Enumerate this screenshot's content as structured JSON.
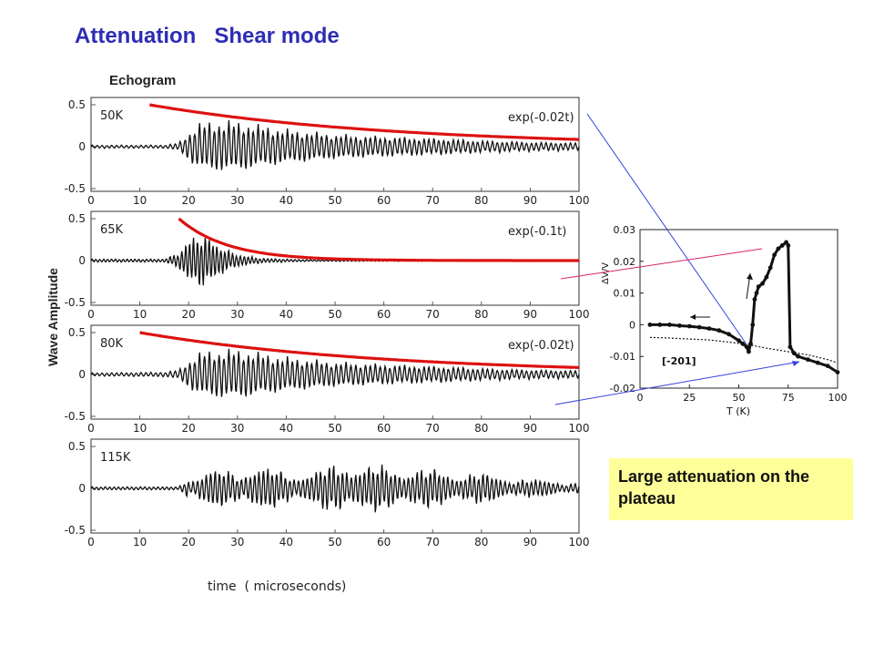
{
  "slide": {
    "title": "Attenuation   Shear mode",
    "subtitle": "Echogram",
    "ylabel": "Wave Amplitude",
    "xlabel": "time  ( microseconds)",
    "note": "Large attenuation  on the plateau"
  },
  "colors": {
    "title": "#2d2db4",
    "fit_curve": "#dd1111",
    "waveform": "#111111",
    "note_bg": "#ffff99",
    "pointer_blue": "#3344dd",
    "pointer_red": "#dd2266"
  },
  "chart_data": [
    {
      "type": "line",
      "panel": "echogram",
      "label": "50K",
      "fit_label": "exp(-0.02t)",
      "xlim": [
        0,
        100
      ],
      "ylim": [
        -0.5,
        0.5
      ],
      "yticks": [
        "0.5",
        "0",
        "-0.5"
      ],
      "xticks": [
        "0",
        "10",
        "20",
        "30",
        "40",
        "50",
        "60",
        "70",
        "80",
        "90",
        "100"
      ],
      "fit": {
        "amplitude": 0.5,
        "rate": 0.02,
        "x_start": 12,
        "x_end": 100
      },
      "envelope": [
        [
          0,
          0.02
        ],
        [
          15,
          0.02
        ],
        [
          18,
          0.05
        ],
        [
          22,
          0.3
        ],
        [
          28,
          0.33
        ],
        [
          32,
          0.3
        ],
        [
          40,
          0.22
        ],
        [
          50,
          0.16
        ],
        [
          60,
          0.13
        ],
        [
          70,
          0.11
        ],
        [
          80,
          0.08
        ],
        [
          90,
          0.06
        ],
        [
          100,
          0.05
        ]
      ],
      "carrier_period": 1.0
    },
    {
      "type": "line",
      "panel": "echogram",
      "label": "65K",
      "fit_label": "exp(-0.1t)",
      "xlim": [
        0,
        100
      ],
      "ylim": [
        -0.5,
        0.5
      ],
      "yticks": [
        "0.5",
        "0",
        "-0.5"
      ],
      "xticks": [
        "0",
        "10",
        "20",
        "30",
        "40",
        "50",
        "60",
        "70",
        "80",
        "90",
        "100"
      ],
      "fit": {
        "amplitude": 0.5,
        "rate": 0.1,
        "x_start": 18,
        "x_end": 100
      },
      "envelope": [
        [
          0,
          0.02
        ],
        [
          15,
          0.02
        ],
        [
          18,
          0.1
        ],
        [
          20,
          0.28
        ],
        [
          23,
          0.35
        ],
        [
          26,
          0.2
        ],
        [
          30,
          0.08
        ],
        [
          35,
          0.03
        ],
        [
          45,
          0.01
        ],
        [
          100,
          0.01
        ]
      ],
      "carrier_period": 0.8
    },
    {
      "type": "line",
      "panel": "echogram",
      "label": "80K",
      "fit_label": "exp(-0.02t)",
      "xlim": [
        0,
        100
      ],
      "ylim": [
        -0.5,
        0.5
      ],
      "yticks": [
        "0.5",
        "0",
        "-0.5"
      ],
      "xticks": [
        "0",
        "10",
        "20",
        "30",
        "40",
        "50",
        "60",
        "70",
        "80",
        "90",
        "100"
      ],
      "fit": {
        "amplitude": 0.5,
        "rate": 0.02,
        "x_start": 10,
        "x_end": 100
      },
      "envelope": [
        [
          0,
          0.02
        ],
        [
          15,
          0.03
        ],
        [
          18,
          0.06
        ],
        [
          22,
          0.28
        ],
        [
          28,
          0.32
        ],
        [
          32,
          0.3
        ],
        [
          40,
          0.22
        ],
        [
          50,
          0.16
        ],
        [
          60,
          0.13
        ],
        [
          70,
          0.11
        ],
        [
          80,
          0.08
        ],
        [
          90,
          0.06
        ],
        [
          100,
          0.05
        ]
      ],
      "carrier_period": 1.0
    },
    {
      "type": "line",
      "panel": "echogram",
      "label": "115K",
      "xlim": [
        0,
        100
      ],
      "ylim": [
        -0.5,
        0.5
      ],
      "yticks": [
        "0.5",
        "0",
        "-0.5"
      ],
      "xticks": [
        "0",
        "10",
        "20",
        "30",
        "40",
        "50",
        "60",
        "70",
        "80",
        "90",
        "100"
      ],
      "envelope": [
        [
          0,
          0.02
        ],
        [
          18,
          0.02
        ],
        [
          20,
          0.12
        ],
        [
          25,
          0.25
        ],
        [
          35,
          0.28
        ],
        [
          45,
          0.2
        ],
        [
          52,
          0.4
        ],
        [
          55,
          0.3
        ],
        [
          62,
          0.3
        ],
        [
          70,
          0.25
        ],
        [
          80,
          0.2
        ],
        [
          90,
          0.12
        ],
        [
          100,
          0.08
        ]
      ],
      "carrier_period": 0.9,
      "beat_period": 11
    },
    {
      "type": "scatter",
      "panel": "inset",
      "annotation": "[-201]",
      "xlabel": "T  (K)",
      "ylabel": "ΔV/V",
      "xlim": [
        0,
        100
      ],
      "ylim": [
        -0.02,
        0.03
      ],
      "xticks": [
        "0",
        "25",
        "50",
        "75",
        "100"
      ],
      "yticks": [
        "0.03",
        "0.02",
        "0.01",
        "0",
        "-0.01",
        "-0.02"
      ],
      "series": [
        {
          "role": "heating",
          "x": [
            5,
            10,
            15,
            20,
            25,
            30,
            35,
            40,
            45,
            50,
            52,
            54,
            55,
            56,
            57,
            58,
            59,
            60,
            62,
            64,
            66,
            68,
            70,
            72,
            74,
            75,
            76,
            78,
            80,
            85,
            90,
            95,
            100
          ],
          "y": [
            0,
            0,
            0,
            -0.0003,
            -0.0005,
            -0.0008,
            -0.0012,
            -0.0018,
            -0.003,
            -0.005,
            -0.006,
            -0.007,
            -0.0085,
            -0.006,
            0,
            0.008,
            0.01,
            0.012,
            0.013,
            0.015,
            0.018,
            0.022,
            0.024,
            0.025,
            0.026,
            0.025,
            -0.007,
            -0.009,
            -0.01,
            -0.011,
            -0.012,
            -0.013,
            -0.015
          ]
        },
        {
          "role": "cooling",
          "x": [
            5,
            15,
            25,
            35,
            45,
            55,
            65,
            75,
            85,
            95,
            100
          ],
          "y": [
            -0.004,
            -0.0042,
            -0.0045,
            -0.0048,
            -0.0055,
            -0.0063,
            -0.0075,
            -0.0085,
            -0.0095,
            -0.011,
            -0.012
          ]
        }
      ]
    }
  ]
}
